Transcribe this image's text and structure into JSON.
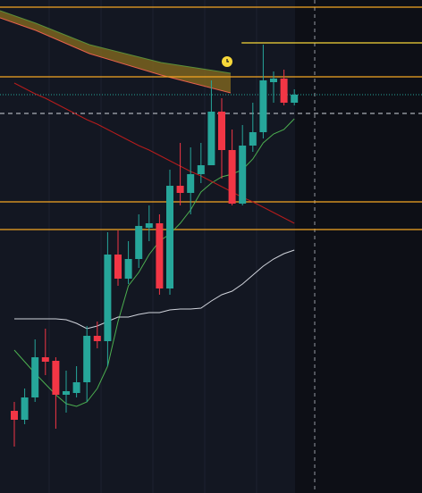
{
  "chart_data": {
    "type": "candlestick",
    "ylim": [
      0,
      552
    ],
    "up_color": "#26a69a",
    "down_color": "#f23645",
    "open": [
      92,
      82,
      107,
      152,
      148,
      110,
      112,
      124,
      176,
      170,
      267,
      240,
      262,
      297,
      302,
      229,
      344,
      336,
      357,
      367,
      427,
      384,
      324,
      389,
      404,
      460,
      464,
      437
    ],
    "high": [
      102,
      117,
      172,
      184,
      152,
      137,
      142,
      187,
      192,
      292,
      294,
      282,
      312,
      322,
      312,
      362,
      392,
      387,
      392,
      462,
      442,
      407,
      412,
      437,
      502,
      472,
      474,
      452
    ],
    "low": [
      52,
      77,
      102,
      132,
      72,
      90,
      107,
      102,
      162,
      142,
      232,
      234,
      252,
      282,
      222,
      222,
      322,
      312,
      347,
      367,
      352,
      322,
      322,
      382,
      397,
      437,
      434,
      434
    ],
    "close": [
      82,
      107,
      152,
      147,
      110,
      114,
      124,
      176,
      170,
      267,
      240,
      262,
      299,
      302,
      229,
      344,
      336,
      357,
      367,
      427,
      384,
      324,
      389,
      404,
      462,
      464,
      437,
      446
    ],
    "lines": [
      {
        "color": "#4caf50",
        "values": [
          160,
          147,
          134,
          122,
          110,
          100,
          97,
          102,
          117,
          142,
          192,
          232,
          247,
          267,
          282,
          290,
          302,
          317,
          337,
          347,
          354,
          357,
          362,
          374,
          392,
          402,
          407,
          419
        ]
      },
      {
        "color": "#d1d4dc",
        "values": [
          195,
          195,
          195,
          195,
          195,
          194,
          190,
          184,
          187,
          192,
          197,
          197,
          200,
          202,
          202,
          205,
          206,
          206,
          207,
          215,
          222,
          226,
          234,
          244,
          254,
          262,
          268,
          272
        ]
      },
      {
        "color": "#b71c1c",
        "values": [
          459,
          453,
          447,
          442,
          436,
          430,
          424,
          418,
          413,
          407,
          401,
          395,
          389,
          384,
          378,
          372,
          366,
          360,
          355,
          349,
          343,
          337,
          331,
          326,
          320,
          314,
          308,
          302
        ]
      }
    ],
    "levels": [
      {
        "value": 544,
        "color": "#f5a623",
        "style": "solid"
      },
      {
        "value": 466,
        "color": "#f5a623",
        "style": "solid"
      },
      {
        "value": 326,
        "color": "#f5a623",
        "style": "solid"
      },
      {
        "value": 295,
        "color": "#f5a623",
        "style": "solid"
      },
      {
        "value": 504,
        "color": "#f7d83a",
        "style": "solid",
        "from_index": 22
      },
      {
        "value": 446,
        "color": "#26a69a",
        "style": "dotted"
      },
      {
        "value": 425,
        "color": "#d1d4dc",
        "style": "dashed"
      }
    ]
  }
}
